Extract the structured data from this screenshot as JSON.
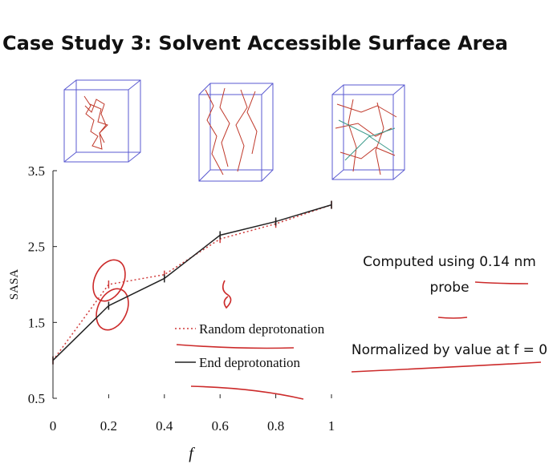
{
  "chart_data": {
    "type": "line",
    "title": "Case Study 3: Solvent Accessible Surface Area",
    "x_label": "f",
    "y_label": "SASA",
    "x": [
      0,
      0.2,
      0.4,
      0.6,
      0.8,
      1
    ],
    "series": [
      {
        "name": "Random deprotonation",
        "color": "#d03a3a",
        "style": "dotted",
        "values": [
          1.0,
          2.0,
          2.13,
          2.6,
          2.8,
          3.05
        ]
      },
      {
        "name": "End deprotonation",
        "color": "#222222",
        "style": "solid",
        "values": [
          1.0,
          1.72,
          2.08,
          2.65,
          2.83,
          3.05
        ]
      }
    ],
    "xlim": [
      0,
      1
    ],
    "xticks": [
      0,
      0.2,
      0.4,
      0.6,
      0.8,
      1
    ],
    "ylim": [
      0.5,
      3.5
    ],
    "yticks": [
      0.5,
      1.5,
      2.5,
      3.5
    ],
    "legend": "lower-center",
    "annotations": [
      "Computed using 0.14 nm",
      "probe",
      "Normalized by value at f = 0"
    ]
  }
}
